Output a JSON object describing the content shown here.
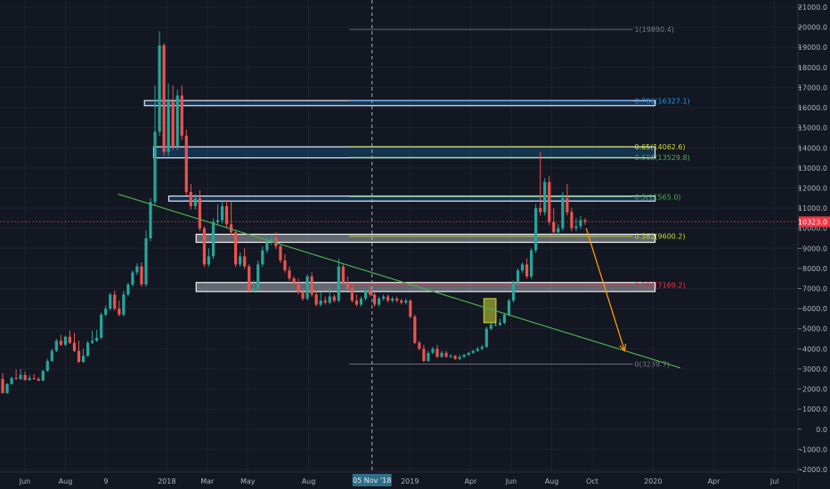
{
  "chart_data": {
    "type": "candlestick",
    "title": "",
    "xlabel": "",
    "ylabel": "",
    "grid": true,
    "x_ticks": [
      {
        "label": "Jun",
        "m": 0.0
      },
      {
        "label": "Aug",
        "m": 2.0
      },
      {
        "label": "9",
        "m": 4.0
      },
      {
        "label": "2018",
        "m": 7.0
      },
      {
        "label": "Mar",
        "m": 9.0
      },
      {
        "label": "May",
        "m": 11.0
      },
      {
        "label": "Aug",
        "m": 14.0
      },
      {
        "label": "2019",
        "m": 19.0
      },
      {
        "label": "Apr",
        "m": 22.0
      },
      {
        "label": "Jun",
        "m": 24.0
      },
      {
        "label": "Aug",
        "m": 26.0
      },
      {
        "label": "Oct",
        "m": 28.0
      },
      {
        "label": "2020",
        "m": 31.0
      },
      {
        "label": "Apr",
        "m": 34.0
      },
      {
        "label": "Jul",
        "m": 37.0
      }
    ],
    "crosshair": {
      "label": "05 Nov '18",
      "m": 17.13
    },
    "y_axis": {
      "min": -2000,
      "max": 21000,
      "step": 1000
    },
    "last_price": {
      "value": 10323.0,
      "label": "10323.0",
      "color": "#f23645"
    },
    "fibonacci": {
      "start_m": 16.0,
      "end_m": 30.0,
      "levels": [
        {
          "ratio": "1",
          "value": 19890.4,
          "label": "1(19890.4)",
          "color": "#787b86"
        },
        {
          "ratio": "0.786",
          "value": 16327.1,
          "label": "0.786(16327.1)",
          "color": "#2196f3"
        },
        {
          "ratio": "0.65",
          "value": 14062.6,
          "label": "0.65(14062.6)",
          "color": "#cddc39"
        },
        {
          "ratio": "0.618",
          "value": 13529.8,
          "label": "0.618(13529.8)",
          "color": "#4caf50"
        },
        {
          "ratio": "0.5",
          "value": 11565.0,
          "label": "0.5(11565.0)",
          "color": "#4caf50"
        },
        {
          "ratio": "0.382",
          "value": 9600.2,
          "label": "0.382(9600.2)",
          "color": "#cddc39"
        },
        {
          "ratio": "0.236",
          "value": 7169.2,
          "label": "0.236(7169.2)",
          "color": "#f23645"
        },
        {
          "ratio": "0",
          "value": 3239.7,
          "label": "0(3239.7)",
          "color": "#787b86"
        }
      ]
    },
    "zones": [
      {
        "from_m": 5.9,
        "to_m": 31.1,
        "low": 16100,
        "high": 16350,
        "color": "blue"
      },
      {
        "from_m": 6.35,
        "to_m": 31.1,
        "low": 13500,
        "high": 14050,
        "color": "blue"
      },
      {
        "from_m": 7.1,
        "to_m": 31.1,
        "low": 11350,
        "high": 11600,
        "color": "blue"
      },
      {
        "from_m": 8.45,
        "to_m": 31.1,
        "low": 9300,
        "high": 9700,
        "color": "white"
      },
      {
        "from_m": 8.45,
        "to_m": 31.1,
        "low": 6850,
        "high": 7300,
        "color": "white"
      },
      {
        "from_m": 22.65,
        "to_m": 23.25,
        "low": 5300,
        "high": 6500,
        "color": "yellow"
      }
    ],
    "trendline": {
      "x1_m": 4.6,
      "y1": 11700,
      "x2_m": 32.35,
      "y2": 3050,
      "color": "#4caf50"
    },
    "projection_arrow": {
      "x1_m": 27.7,
      "y1": 10000,
      "x2_m": 29.6,
      "y2": 3900,
      "color": "#ff9800"
    },
    "weekly_candles": [
      [
        2500,
        1800,
        2800
      ],
      [
        1800,
        2250,
        2300
      ],
      [
        2250,
        2550,
        2620
      ],
      [
        2550,
        2500,
        2980
      ],
      [
        2500,
        2700,
        3000
      ],
      [
        2700,
        2450,
        2880
      ],
      [
        2450,
        2550,
        2700
      ],
      [
        2550,
        2500,
        2750
      ],
      [
        2500,
        2420,
        2600
      ],
      [
        2420,
        2900,
        2950
      ],
      [
        2900,
        3400,
        3500
      ],
      [
        3400,
        3900,
        4000
      ],
      [
        3900,
        4400,
        4500
      ],
      [
        4400,
        4200,
        4700
      ],
      [
        4200,
        4600,
        4650
      ],
      [
        4600,
        4300,
        4900
      ],
      [
        4300,
        3900,
        4800
      ],
      [
        3900,
        3350,
        4400
      ],
      [
        3350,
        3650,
        4000
      ],
      [
        3650,
        4300,
        4400
      ],
      [
        4300,
        4400,
        4900
      ],
      [
        4400,
        4550,
        4950
      ],
      [
        4550,
        5700,
        5800
      ],
      [
        5700,
        6000,
        6150
      ],
      [
        6000,
        6700,
        6800
      ],
      [
        6700,
        6000,
        6900
      ],
      [
        6000,
        5700,
        6400
      ],
      [
        5700,
        6700,
        6900
      ],
      [
        6700,
        7200,
        7300
      ],
      [
        7200,
        7800,
        7900
      ],
      [
        7800,
        8100,
        8250
      ],
      [
        8100,
        7200,
        8300
      ],
      [
        7200,
        9500,
        9900
      ],
      [
        9500,
        11300,
        11500
      ],
      [
        11300,
        14800,
        17100
      ],
      [
        14800,
        19100,
        19800
      ],
      [
        19100,
        13800,
        19200
      ],
      [
        13800,
        16300,
        17200
      ],
      [
        16300,
        14100,
        17100
      ],
      [
        14100,
        16600,
        16900
      ],
      [
        16600,
        14600,
        17100
      ],
      [
        14600,
        11800,
        14900
      ],
      [
        11800,
        11100,
        12200
      ],
      [
        11100,
        11500,
        11700
      ],
      [
        11500,
        10000,
        11900
      ],
      [
        10000,
        8200,
        10100
      ],
      [
        8200,
        8600,
        9000
      ],
      [
        8600,
        10300,
        10500
      ],
      [
        10300,
        10400,
        11200
      ],
      [
        10400,
        11100,
        11300
      ],
      [
        11100,
        10200,
        11400
      ],
      [
        10200,
        9800,
        11300
      ],
      [
        9800,
        8200,
        9900
      ],
      [
        8200,
        8600,
        8800
      ],
      [
        8600,
        8100,
        9000
      ],
      [
        8100,
        6900,
        8200
      ],
      [
        6900,
        7000,
        7400
      ],
      [
        7000,
        8200,
        8400
      ],
      [
        8200,
        8900,
        9100
      ],
      [
        8900,
        9300,
        9600
      ],
      [
        9300,
        9500,
        9700
      ],
      [
        9500,
        9100,
        9800
      ],
      [
        9100,
        8400,
        9200
      ],
      [
        8400,
        7900,
        8700
      ],
      [
        7900,
        7500,
        8100
      ],
      [
        7500,
        7300,
        7600
      ],
      [
        7300,
        6800,
        7500
      ],
      [
        6800,
        6500,
        7000
      ],
      [
        6500,
        7600,
        7700
      ],
      [
        7600,
        6700,
        7800
      ],
      [
        6700,
        6200,
        6900
      ],
      [
        6200,
        6400,
        6800
      ],
      [
        6400,
        6300,
        6600
      ],
      [
        6300,
        6600,
        7100
      ],
      [
        6600,
        6400,
        6700
      ],
      [
        6400,
        8100,
        8500
      ],
      [
        8100,
        7300,
        8200
      ],
      [
        7300,
        7000,
        7600
      ],
      [
        7000,
        6400,
        7200
      ],
      [
        6400,
        6200,
        6700
      ],
      [
        6200,
        6500,
        6600
      ],
      [
        6500,
        6900,
        7000
      ],
      [
        6900,
        6700,
        7100
      ],
      [
        6700,
        6200,
        6800
      ],
      [
        6200,
        6500,
        6600
      ],
      [
        6500,
        6600,
        6700
      ],
      [
        6600,
        6400,
        6700
      ],
      [
        6400,
        6500,
        6600
      ],
      [
        6500,
        6400,
        6600
      ],
      [
        6400,
        6300,
        6500
      ],
      [
        6300,
        6400,
        6500
      ],
      [
        6400,
        5600,
        6450
      ],
      [
        5600,
        4300,
        5700
      ],
      [
        4300,
        4000,
        4400
      ],
      [
        4000,
        3400,
        4200
      ],
      [
        3400,
        3800,
        3900
      ],
      [
        3800,
        4000,
        4100
      ],
      [
        4000,
        3600,
        4200
      ],
      [
        3600,
        3800,
        3900
      ],
      [
        3800,
        3600,
        3900
      ],
      [
        3600,
        3650,
        3750
      ],
      [
        3650,
        3500,
        3700
      ],
      [
        3500,
        3600,
        3700
      ],
      [
        3600,
        3700,
        3750
      ],
      [
        3700,
        3800,
        3850
      ],
      [
        3800,
        3900,
        3950
      ],
      [
        3900,
        4000,
        4100
      ],
      [
        4000,
        4100,
        4200
      ],
      [
        4100,
        5000,
        5100
      ],
      [
        5000,
        5200,
        5300
      ],
      [
        5200,
        5200,
        5400
      ],
      [
        5200,
        5300,
        5500
      ],
      [
        5300,
        5700,
        5800
      ],
      [
        5700,
        6400,
        6500
      ],
      [
        6400,
        7300,
        7400
      ],
      [
        7300,
        7900,
        8000
      ],
      [
        7900,
        8200,
        8300
      ],
      [
        8200,
        7600,
        8500
      ],
      [
        7600,
        8900,
        9000
      ],
      [
        8900,
        11000,
        11200
      ],
      [
        11000,
        10800,
        13800
      ],
      [
        10800,
        12300,
        12500
      ],
      [
        12300,
        10300,
        12600
      ],
      [
        10300,
        9800,
        11000
      ],
      [
        9800,
        10000,
        10200
      ],
      [
        10000,
        11500,
        11800
      ],
      [
        11500,
        10800,
        12200
      ],
      [
        10800,
        10000,
        11000
      ],
      [
        10000,
        10100,
        10500
      ],
      [
        10100,
        10400,
        10600
      ],
      [
        10400,
        10323,
        10500
      ]
    ]
  }
}
